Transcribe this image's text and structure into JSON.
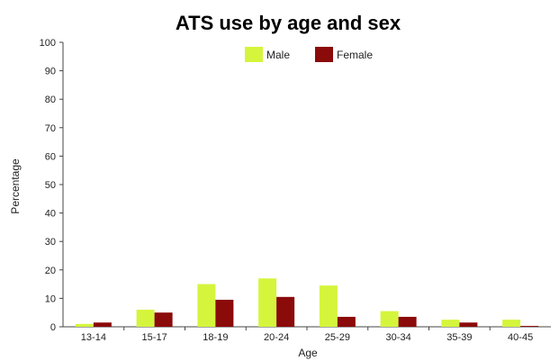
{
  "chart_data": {
    "type": "bar",
    "title": "ATS use by age and sex",
    "xlabel": "Age",
    "ylabel": "Percentage",
    "ylim": [
      0,
      100
    ],
    "yticks": [
      0,
      10,
      20,
      30,
      40,
      50,
      60,
      70,
      80,
      90,
      100
    ],
    "grid": false,
    "legend": "top-center",
    "categories": [
      "13-14",
      "15-17",
      "18-19",
      "20-24",
      "25-29",
      "30-34",
      "35-39",
      "40-45"
    ],
    "series": [
      {
        "name": "Male",
        "color": "#d4f53c",
        "values": [
          1,
          6,
          15,
          17,
          14.5,
          5.5,
          2.5,
          2.5
        ]
      },
      {
        "name": "Female",
        "color": "#8b0a0a",
        "values": [
          1.5,
          5,
          9.5,
          10.5,
          3.5,
          3.5,
          1.5,
          0.3
        ]
      }
    ]
  }
}
